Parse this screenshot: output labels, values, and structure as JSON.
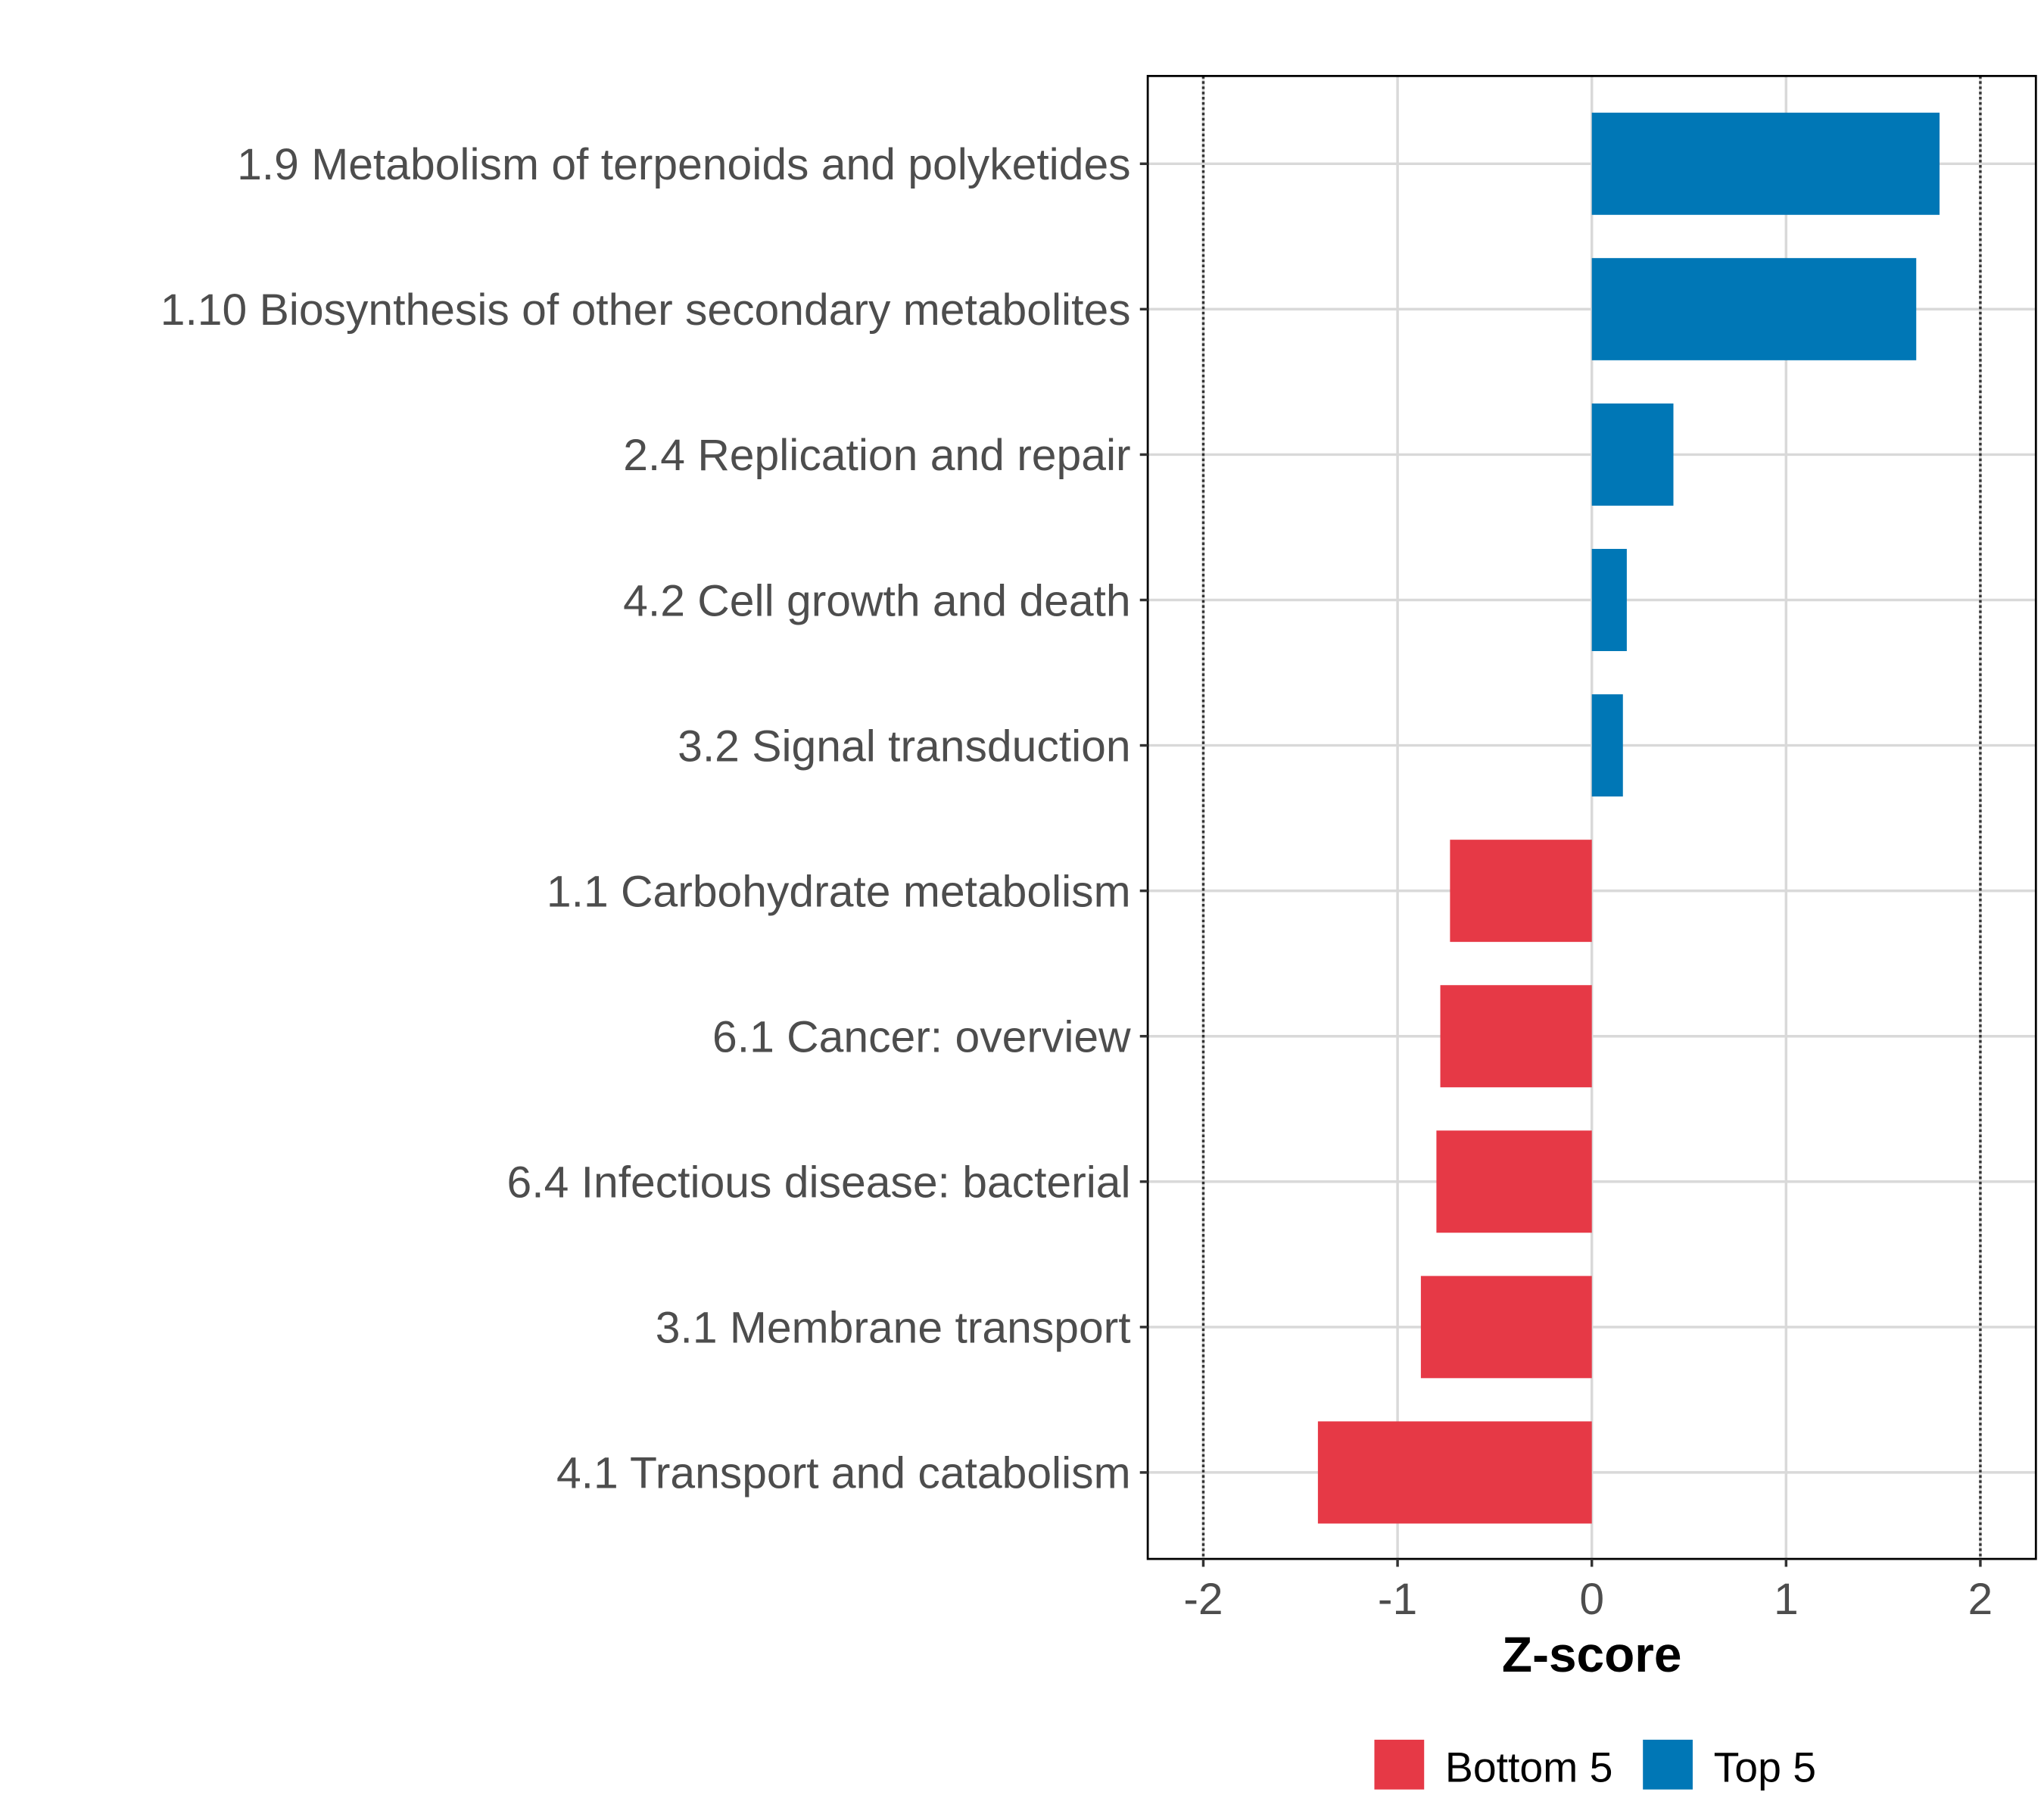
{
  "chart_data": {
    "type": "bar",
    "orientation": "horizontal",
    "title": "",
    "xlabel": "Z-score",
    "ylabel": "",
    "xlim": [
      -2.25,
      2.3
    ],
    "xticks": [
      -2,
      -1,
      0,
      1,
      2
    ],
    "xtick_labels": [
      "-2",
      "-1",
      "0",
      "1",
      "2"
    ],
    "reference_lines": [
      -2,
      2
    ],
    "grid": true,
    "categories": [
      "1.9 Metabolism of terpenoids and polyketides",
      "1.10 Biosynthesis of other secondary metabolites",
      "2.4 Replication and repair",
      "4.2 Cell growth and death",
      "3.2 Signal transduction",
      "1.1 Carbohydrate metabolism",
      "6.1 Cancer: overview",
      "6.4 Infectious disease: bacterial",
      "3.1 Membrane transport",
      "4.1 Transport and catabolism"
    ],
    "values": [
      1.79,
      1.67,
      0.42,
      0.18,
      0.16,
      -0.73,
      -0.78,
      -0.8,
      -0.88,
      -1.41
    ],
    "groups": [
      "Top 5",
      "Top 5",
      "Top 5",
      "Top 5",
      "Top 5",
      "Bottom 5",
      "Bottom 5",
      "Bottom 5",
      "Bottom 5",
      "Bottom 5"
    ],
    "legend": {
      "position": "bottom",
      "entries": [
        {
          "label": "Bottom 5",
          "color": "#E63946"
        },
        {
          "label": "Top 5",
          "color": "#0077B6"
        }
      ]
    }
  }
}
